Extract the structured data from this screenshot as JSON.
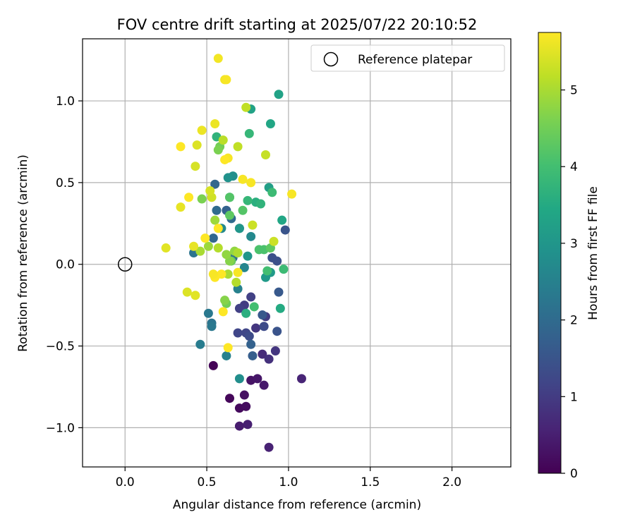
{
  "chart_data": {
    "type": "scatter",
    "title": "FOV centre drift starting at 2025/07/22 20:10:52",
    "xlabel": "Angular distance from reference (arcmin)",
    "ylabel": "Rotation from reference (arcmin)",
    "xlim": [
      -0.26,
      2.36
    ],
    "ylim": [
      -1.24,
      1.38
    ],
    "x_ticks": [
      0.0,
      0.5,
      1.0,
      1.5,
      2.0
    ],
    "x_tick_labels": [
      "0.0",
      "0.5",
      "1.0",
      "1.5",
      "2.0"
    ],
    "y_ticks": [
      -1.0,
      -0.5,
      0.0,
      0.5,
      1.0
    ],
    "y_tick_labels": [
      "−1.0",
      "−0.5",
      "0.0",
      "0.5",
      "1.0"
    ],
    "grid": true,
    "legend": {
      "placement": "upper right",
      "entries": [
        "Reference platepar"
      ]
    },
    "reference_point": {
      "x": 0.0,
      "y": 0.0,
      "label": "Reference platepar"
    },
    "colorbar": {
      "label": "Hours from first FF file",
      "range": [
        0,
        5.75
      ],
      "ticks": [
        0,
        1,
        2,
        3,
        4,
        5
      ],
      "tick_labels": [
        "0",
        "1",
        "2",
        "3",
        "4",
        "5"
      ],
      "colormap": "viridis"
    },
    "points": [
      [
        0.54,
        -0.62,
        0.05
      ],
      [
        0.64,
        -0.82,
        0.1
      ],
      [
        0.7,
        -0.88,
        0.15
      ],
      [
        0.74,
        -0.87,
        0.2
      ],
      [
        0.73,
        -0.8,
        0.25
      ],
      [
        0.77,
        -0.71,
        0.3
      ],
      [
        0.81,
        -0.7,
        0.35
      ],
      [
        0.85,
        -0.74,
        0.4
      ],
      [
        0.7,
        -0.99,
        0.45
      ],
      [
        0.75,
        -0.98,
        0.5
      ],
      [
        0.88,
        -1.12,
        0.55
      ],
      [
        1.08,
        -0.7,
        0.6
      ],
      [
        0.84,
        -0.55,
        0.7
      ],
      [
        0.88,
        -0.58,
        0.8
      ],
      [
        0.92,
        -0.53,
        0.9
      ],
      [
        0.8,
        -0.39,
        0.9
      ],
      [
        0.86,
        -0.32,
        1.0
      ],
      [
        0.73,
        -0.25,
        1.0
      ],
      [
        0.7,
        -0.27,
        1.1
      ],
      [
        0.77,
        -0.2,
        1.1
      ],
      [
        0.74,
        -0.42,
        1.2
      ],
      [
        0.69,
        -0.42,
        1.2
      ],
      [
        0.76,
        -0.44,
        1.3
      ],
      [
        0.85,
        -0.38,
        1.3
      ],
      [
        0.9,
        0.04,
        1.4
      ],
      [
        0.93,
        0.02,
        1.4
      ],
      [
        0.98,
        0.21,
        1.5
      ],
      [
        0.93,
        -0.41,
        1.5
      ],
      [
        0.94,
        -0.17,
        1.6
      ],
      [
        0.84,
        -0.31,
        1.6
      ],
      [
        0.78,
        -0.56,
        1.7
      ],
      [
        0.77,
        -0.49,
        1.8
      ],
      [
        0.62,
        0.33,
        1.8
      ],
      [
        0.54,
        0.16,
        1.9
      ],
      [
        0.55,
        0.49,
        1.9
      ],
      [
        0.56,
        0.33,
        2.0
      ],
      [
        0.65,
        0.28,
        2.0
      ],
      [
        0.7,
        0.22,
        2.1
      ],
      [
        0.66,
        0.04,
        2.1
      ],
      [
        0.42,
        0.07,
        2.2
      ],
      [
        0.53,
        -0.36,
        2.2
      ],
      [
        0.53,
        -0.38,
        2.3
      ],
      [
        0.51,
        -0.3,
        2.3
      ],
      [
        0.46,
        -0.49,
        2.4
      ],
      [
        0.62,
        -0.56,
        2.5
      ],
      [
        0.69,
        -0.15,
        2.5
      ],
      [
        0.73,
        -0.02,
        2.6
      ],
      [
        0.77,
        0.17,
        2.7
      ],
      [
        0.59,
        0.22,
        2.7
      ],
      [
        0.7,
        -0.7,
        2.8
      ],
      [
        0.66,
        0.54,
        2.8
      ],
      [
        0.63,
        0.53,
        2.9
      ],
      [
        0.64,
        0.41,
        2.9
      ],
      [
        0.7,
        0.22,
        3.0
      ],
      [
        0.75,
        0.05,
        3.0
      ],
      [
        0.86,
        -0.08,
        3.1
      ],
      [
        0.89,
        -0.05,
        3.1
      ],
      [
        0.88,
        0.47,
        3.2
      ],
      [
        0.94,
        1.04,
        3.3
      ],
      [
        0.77,
        0.95,
        3.3
      ],
      [
        0.89,
        0.86,
        3.4
      ],
      [
        0.96,
        0.27,
        3.4
      ],
      [
        0.95,
        -0.27,
        3.5
      ],
      [
        0.74,
        -0.3,
        3.6
      ],
      [
        0.8,
        0.38,
        3.6
      ],
      [
        0.83,
        0.37,
        3.7
      ],
      [
        0.56,
        0.78,
        3.7
      ],
      [
        0.75,
        0.39,
        3.8
      ],
      [
        0.76,
        0.8,
        3.8
      ],
      [
        0.9,
        0.44,
        3.9
      ],
      [
        0.97,
        -0.03,
        3.9
      ],
      [
        0.87,
        -0.04,
        4.0
      ],
      [
        0.79,
        -0.26,
        4.0
      ],
      [
        0.82,
        0.09,
        4.1
      ],
      [
        0.85,
        0.09,
        4.1
      ],
      [
        0.72,
        0.33,
        4.2
      ],
      [
        0.64,
        0.41,
        4.2
      ],
      [
        0.64,
        0.3,
        4.3
      ],
      [
        0.89,
        0.1,
        4.3
      ],
      [
        0.65,
        0.02,
        4.4
      ],
      [
        0.62,
        -0.24,
        4.5
      ],
      [
        0.58,
        0.72,
        4.5
      ],
      [
        0.57,
        0.7,
        4.6
      ],
      [
        0.47,
        0.4,
        4.6
      ],
      [
        0.64,
        0.02,
        4.7
      ],
      [
        0.61,
        -0.22,
        4.7
      ],
      [
        0.67,
        0.08,
        4.8
      ],
      [
        0.62,
        0.06,
        4.8
      ],
      [
        0.55,
        0.27,
        4.9
      ],
      [
        0.51,
        0.11,
        4.9
      ],
      [
        0.46,
        0.08,
        5.0
      ],
      [
        0.63,
        -0.06,
        5.0
      ],
      [
        0.69,
        0.07,
        5.05
      ],
      [
        0.68,
        -0.11,
        5.1
      ],
      [
        0.57,
        0.1,
        5.1
      ],
      [
        0.6,
        0.76,
        5.15
      ],
      [
        0.69,
        0.72,
        5.2
      ],
      [
        0.74,
        0.96,
        5.2
      ],
      [
        0.86,
        0.67,
        5.25
      ],
      [
        0.91,
        0.14,
        5.3
      ],
      [
        0.78,
        0.24,
        5.3
      ],
      [
        0.53,
        0.41,
        5.35
      ],
      [
        0.52,
        0.45,
        5.4
      ],
      [
        0.43,
        0.6,
        5.4
      ],
      [
        0.44,
        0.73,
        5.45
      ],
      [
        0.38,
        -0.17,
        5.45
      ],
      [
        0.43,
        -0.19,
        5.5
      ],
      [
        0.25,
        0.1,
        5.5
      ],
      [
        0.34,
        0.35,
        5.55
      ],
      [
        0.42,
        0.11,
        5.55
      ],
      [
        0.47,
        0.82,
        5.6
      ],
      [
        0.55,
        0.86,
        5.6
      ],
      [
        0.57,
        1.26,
        5.65
      ],
      [
        0.61,
        1.13,
        5.65
      ],
      [
        0.62,
        1.13,
        5.7
      ],
      [
        0.63,
        0.65,
        5.7
      ],
      [
        0.72,
        0.52,
        5.7
      ],
      [
        0.77,
        0.5,
        5.7
      ],
      [
        1.02,
        0.43,
        5.7
      ],
      [
        0.59,
        -0.06,
        5.75
      ],
      [
        0.55,
        -0.08,
        5.75
      ],
      [
        0.6,
        -0.29,
        5.75
      ],
      [
        0.63,
        -0.51,
        5.75
      ],
      [
        0.49,
        0.16,
        5.75
      ],
      [
        0.57,
        0.22,
        5.75
      ],
      [
        0.34,
        0.72,
        5.75
      ],
      [
        0.39,
        0.41,
        5.75
      ],
      [
        0.61,
        0.64,
        5.75
      ],
      [
        0.54,
        -0.06,
        5.7
      ],
      [
        0.69,
        -0.05,
        5.7
      ]
    ]
  }
}
